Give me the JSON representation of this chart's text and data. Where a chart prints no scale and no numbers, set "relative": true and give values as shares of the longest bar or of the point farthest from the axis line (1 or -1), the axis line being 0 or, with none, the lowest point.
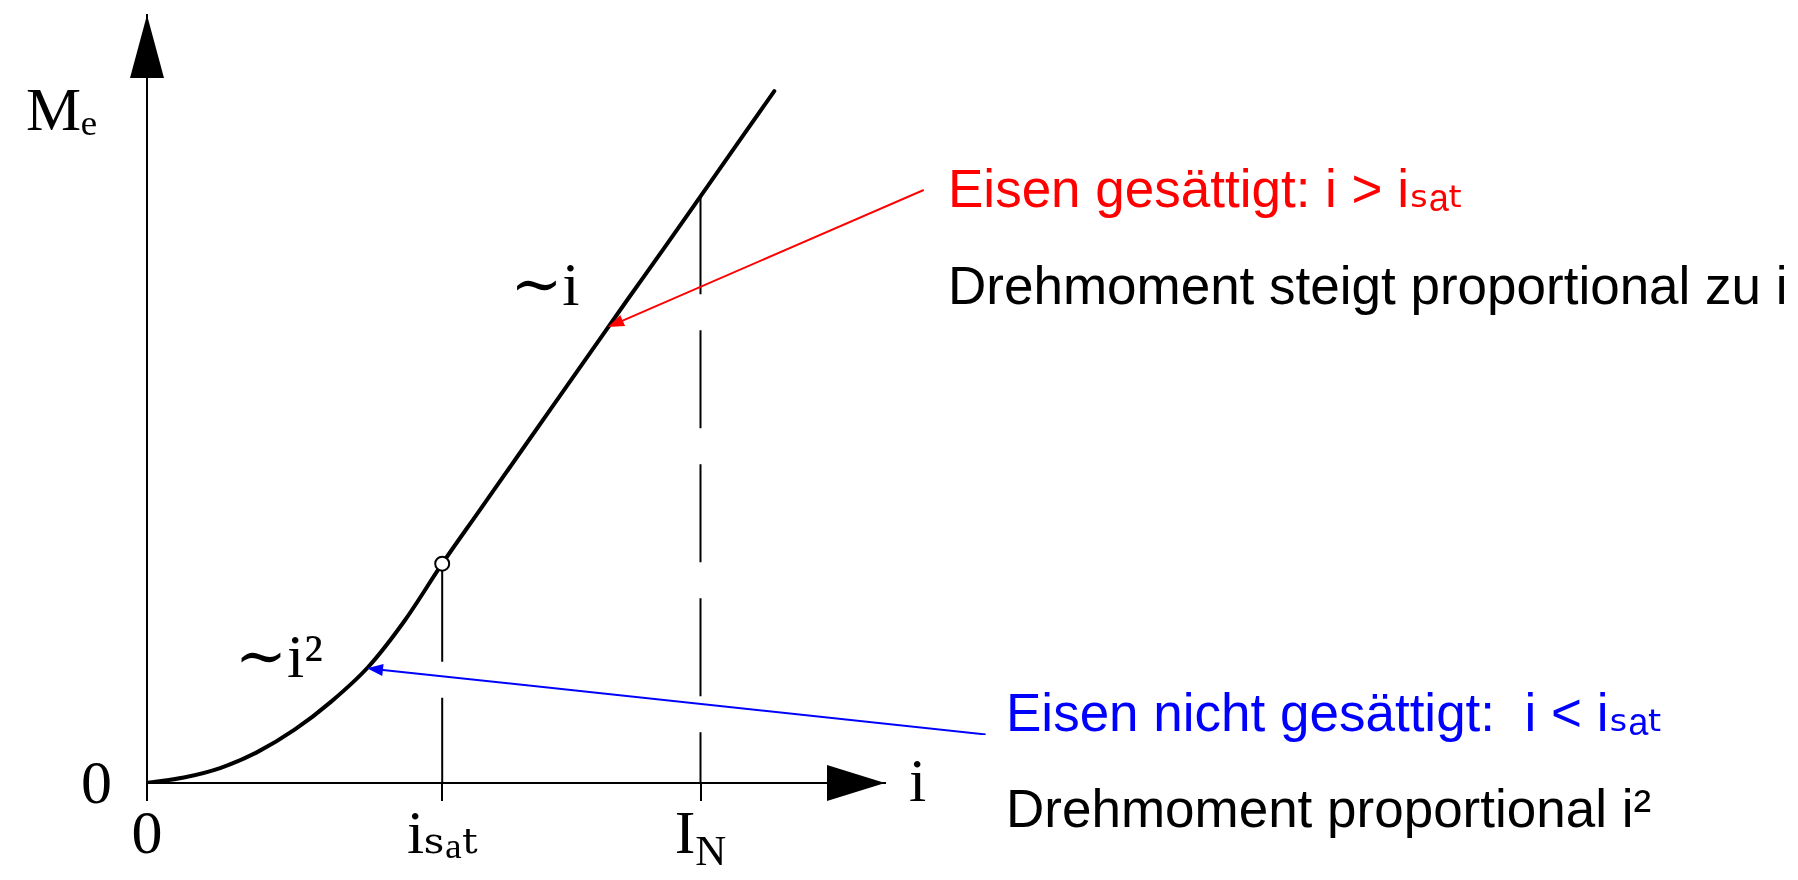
{
  "chart_data": {
    "type": "line",
    "xlabel": "i",
    "ylabel": "Mₑ",
    "relative": true,
    "categories": [
      "0",
      null,
      null,
      null,
      null,
      null,
      null,
      null,
      "iₛₐₜ",
      null,
      null,
      null,
      null,
      null,
      null,
      "I$_{N}$",
      null,
      null,
      null,
      null,
      null
    ],
    "series": [
      {
        "type": "line",
        "color": "#000000",
        "marker": "none",
        "values": [
          0,
          0.008,
          0.022,
          0.045,
          0.077,
          0.118,
          0.168,
          0.236,
          0.317,
          0.393,
          0.469,
          0.545,
          0.621,
          0.697,
          0.772,
          0.848,
          0.924,
          1,
          null,
          null,
          null
        ]
      },
      {
        "type": "line",
        "color": "#000000",
        "marker": "none",
        "line_style": "dashed",
        "x": [
          "iₛₐₜ",
          "iₛₐₜ"
        ],
        "values": [
          0.317,
          0
        ]
      },
      {
        "type": "scatter",
        "color": "#000000",
        "marker": "circle",
        "x": [
          "iₛₐₜ"
        ],
        "values": [
          0.317
        ]
      }
    ],
    "ref_lines": [
      {
        "axis": "x",
        "value": "I$_{N}$",
        "color": "#000000",
        "line_style": "dashed"
      }
    ],
    "annotations": [
      "∼i",
      "∼i²",
      "Eisen gesättigt: i > iₛₐₜ",
      "Drehmoment steigt proportional zu i",
      "Eisen nicht gesättigt:  i < iₛₐₜ",
      "Drehmoment proportional i²",
      {
        "text": "0",
        "x": "0",
        "y": 0
      }
    ]
  }
}
